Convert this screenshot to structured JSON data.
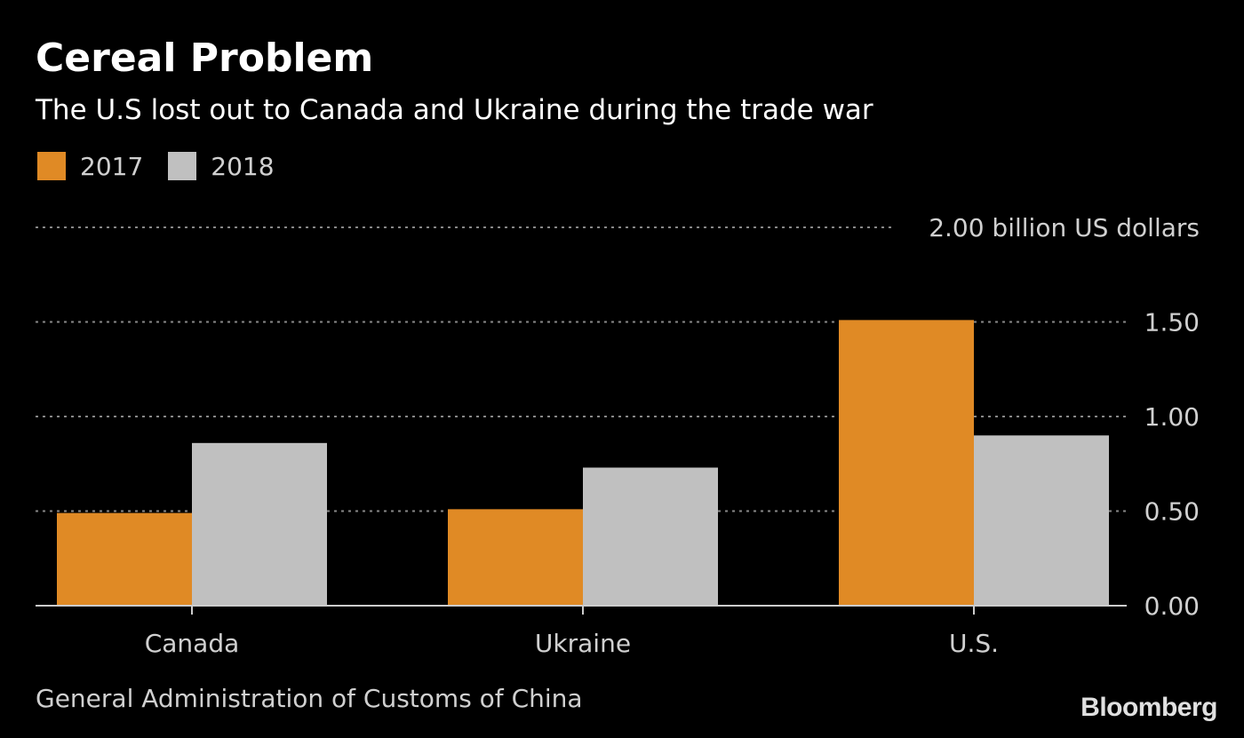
{
  "header": {
    "title": "Cereal Problem",
    "subtitle": "The U.S lost out to Canada and Ukraine during the trade war"
  },
  "footer": {
    "source": "General Administration of Customs of China",
    "brand": "Bloomberg"
  },
  "colors": {
    "background": "#000000",
    "series_2017": "#e08a25",
    "series_2018": "#c0c0c0",
    "gridline": "#888888",
    "axis": "#cccccc",
    "text": "#d0d0d0"
  },
  "chart_data": {
    "type": "bar",
    "title": "Cereal Problem",
    "subtitle": "The U.S lost out to Canada and Ukraine during the trade war",
    "xlabel": "",
    "ylabel": "billion US dollars",
    "categories": [
      "Canada",
      "Ukraine",
      "U.S."
    ],
    "series": [
      {
        "name": "2017",
        "color": "#e08a25",
        "values": [
          0.49,
          0.51,
          1.51
        ]
      },
      {
        "name": "2018",
        "color": "#c0c0c0",
        "values": [
          0.86,
          0.73,
          0.9
        ]
      }
    ],
    "ylim": [
      0,
      2
    ],
    "yticks": [
      0,
      0.5,
      1,
      1.5,
      2
    ],
    "ytick_labels": [
      "0.00",
      "0.50",
      "1.00",
      "1.50",
      "2.00 billion US dollars"
    ],
    "grid": true,
    "legend": "top-left"
  }
}
